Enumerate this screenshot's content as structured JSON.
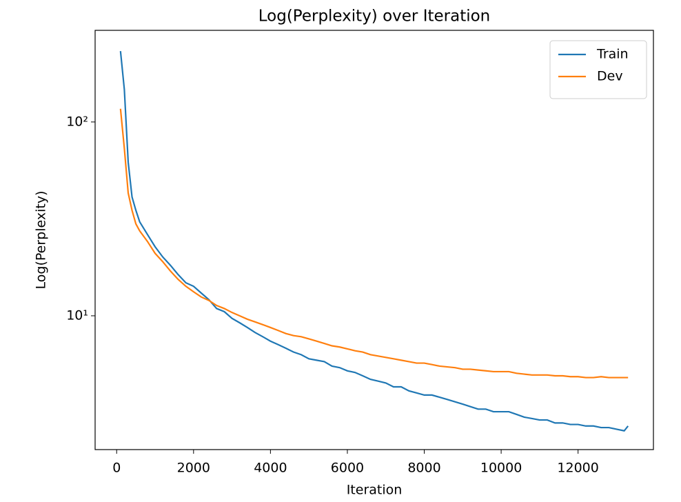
{
  "chart_data": {
    "type": "line",
    "title": "Log(Perplexity) over Iteration",
    "x_label": "Iteration",
    "y_label": "Log(Perplexity)",
    "x": [
      100,
      200,
      300,
      400,
      500,
      600,
      800,
      1000,
      1200,
      1400,
      1600,
      1800,
      2000,
      2200,
      2400,
      2600,
      2800,
      3000,
      3200,
      3400,
      3600,
      3800,
      4000,
      4200,
      4400,
      4600,
      4800,
      5000,
      5200,
      5400,
      5600,
      5800,
      6000,
      6200,
      6400,
      6600,
      6800,
      7000,
      7200,
      7400,
      7600,
      7800,
      8000,
      8200,
      8400,
      8600,
      8800,
      9000,
      9200,
      9400,
      9600,
      9800,
      10000,
      10200,
      10400,
      10600,
      10800,
      11000,
      11200,
      11400,
      11600,
      11800,
      12000,
      12200,
      12400,
      12600,
      12800,
      13000,
      13200,
      13300
    ],
    "series": [
      {
        "name": "Train",
        "color": "#1f77b4",
        "values": [
          232,
          147,
          62,
          41,
          35,
          30.5,
          26.3,
          22.7,
          20.1,
          18.2,
          16.3,
          14.8,
          14.2,
          13.1,
          12.1,
          10.9,
          10.5,
          9.7,
          9.2,
          8.7,
          8.2,
          7.8,
          7.4,
          7.1,
          6.8,
          6.5,
          6.3,
          6.0,
          5.9,
          5.8,
          5.5,
          5.4,
          5.2,
          5.1,
          4.9,
          4.7,
          4.6,
          4.5,
          4.3,
          4.3,
          4.1,
          4.0,
          3.9,
          3.9,
          3.8,
          3.7,
          3.6,
          3.5,
          3.4,
          3.3,
          3.3,
          3.2,
          3.2,
          3.2,
          3.1,
          3.0,
          2.95,
          2.9,
          2.9,
          2.8,
          2.8,
          2.75,
          2.75,
          2.7,
          2.7,
          2.65,
          2.65,
          2.6,
          2.55,
          2.7
        ]
      },
      {
        "name": "Dev",
        "color": "#ff7f0e",
        "values": [
          117,
          73,
          43,
          35,
          29.8,
          27.4,
          24.2,
          21.0,
          19.0,
          17.0,
          15.4,
          14.2,
          13.3,
          12.5,
          12.0,
          11.3,
          10.9,
          10.4,
          10.0,
          9.6,
          9.3,
          9.0,
          8.7,
          8.4,
          8.1,
          7.9,
          7.8,
          7.6,
          7.4,
          7.2,
          7.0,
          6.9,
          6.75,
          6.6,
          6.5,
          6.3,
          6.2,
          6.1,
          6.0,
          5.9,
          5.8,
          5.7,
          5.7,
          5.6,
          5.5,
          5.45,
          5.4,
          5.3,
          5.3,
          5.25,
          5.2,
          5.15,
          5.15,
          5.15,
          5.05,
          5.0,
          4.95,
          4.95,
          4.95,
          4.9,
          4.9,
          4.85,
          4.85,
          4.8,
          4.8,
          4.85,
          4.8,
          4.8,
          4.8,
          4.8
        ]
      }
    ],
    "xlim": [
      -560,
      13960
    ],
    "xticks": [
      0,
      2000,
      4000,
      6000,
      8000,
      10000,
      12000
    ],
    "ylim": [
      2.04,
      297
    ],
    "yscale": "log",
    "yticks": [
      {
        "value": 10,
        "label": "10¹"
      },
      {
        "value": 100,
        "label": "10²"
      }
    ],
    "legend": "upper right"
  }
}
